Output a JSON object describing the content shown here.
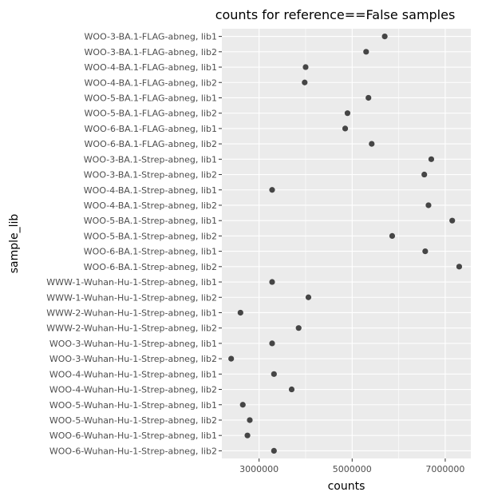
{
  "chart_data": {
    "type": "scatter",
    "title": "counts for reference==False samples",
    "xlabel": "counts",
    "ylabel": "sample_lib",
    "xlim": [
      2200000,
      7550000
    ],
    "x_ticks": [
      {
        "value": 3000000,
        "label": "3000000"
      },
      {
        "value": 5000000,
        "label": "5000000"
      },
      {
        "value": 7000000,
        "label": "7000000"
      }
    ],
    "x_minor_ticks": [
      2000000,
      4000000,
      6000000
    ],
    "grid": true,
    "point_color": "#333333",
    "panel_color": "#ebebeb",
    "categories": [
      "WOO-3-BA.1-FLAG-abneg, lib1",
      "WOO-3-BA.1-FLAG-abneg, lib2",
      "WOO-4-BA.1-FLAG-abneg, lib1",
      "WOO-4-BA.1-FLAG-abneg, lib2",
      "WOO-5-BA.1-FLAG-abneg, lib1",
      "WOO-5-BA.1-FLAG-abneg, lib2",
      "WOO-6-BA.1-FLAG-abneg, lib1",
      "WOO-6-BA.1-FLAG-abneg, lib2",
      "WOO-3-BA.1-Strep-abneg, lib1",
      "WOO-3-BA.1-Strep-abneg, lib2",
      "WOO-4-BA.1-Strep-abneg, lib1",
      "WOO-4-BA.1-Strep-abneg, lib2",
      "WOO-5-BA.1-Strep-abneg, lib1",
      "WOO-5-BA.1-Strep-abneg, lib2",
      "WOO-6-BA.1-Strep-abneg, lib1",
      "WOO-6-BA.1-Strep-abneg, lib2",
      "WWW-1-Wuhan-Hu-1-Strep-abneg, lib1",
      "WWW-1-Wuhan-Hu-1-Strep-abneg, lib2",
      "WWW-2-Wuhan-Hu-1-Strep-abneg, lib1",
      "WWW-2-Wuhan-Hu-1-Strep-abneg, lib2",
      "WOO-3-Wuhan-Hu-1-Strep-abneg, lib1",
      "WOO-3-Wuhan-Hu-1-Strep-abneg, lib2",
      "WOO-4-Wuhan-Hu-1-Strep-abneg, lib1",
      "WOO-4-Wuhan-Hu-1-Strep-abneg, lib2",
      "WOO-5-Wuhan-Hu-1-Strep-abneg, lib1",
      "WOO-5-Wuhan-Hu-1-Strep-abneg, lib2",
      "WOO-6-Wuhan-Hu-1-Strep-abneg, lib1",
      "WOO-6-Wuhan-Hu-1-Strep-abneg, lib2"
    ],
    "values": [
      5700000,
      5300000,
      4000000,
      3980000,
      5350000,
      4900000,
      4850000,
      5420000,
      6700000,
      6550000,
      3280000,
      6640000,
      7150000,
      5860000,
      6570000,
      7300000,
      3280000,
      4060000,
      2600000,
      3850000,
      3280000,
      2400000,
      3320000,
      3700000,
      2650000,
      2800000,
      2750000,
      3320000
    ]
  }
}
